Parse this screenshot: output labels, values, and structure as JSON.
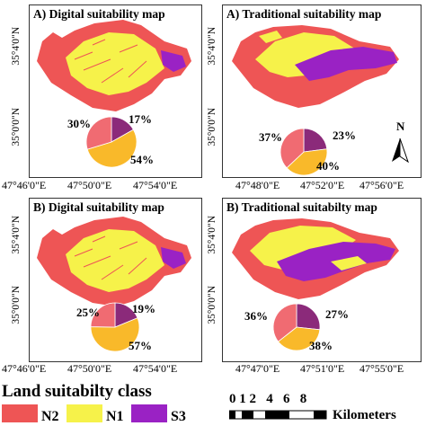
{
  "colors": {
    "N2": "#ee5555",
    "N1": "#f6f24a",
    "S3": "#9a22c4",
    "pie_N2": "#f06b72",
    "pie_N1": "#f9b92a",
    "pie_S3": "#8b2a7a"
  },
  "panels": [
    {
      "title": "A) Digital suitability map",
      "pct_N2": "30%",
      "pct_S3": "17%",
      "pct_N1": "54%",
      "lat_top": "35°4'0\"N",
      "lat_bottom": "35°0'0\"N",
      "lon": [
        "47°46'0\"E",
        "47°50'0\"E",
        "47°54'0\"E"
      ]
    },
    {
      "title": "A) Traditional suitability map",
      "pct_N2": "37%",
      "pct_S3": "23%",
      "pct_N1": "40%",
      "lat_top": "35°4'0\"N",
      "lat_bottom": "35°0'0\"N",
      "lon": [
        "47°48'0\"E",
        "47°52'0\"E",
        "47°56'0\"E"
      ]
    },
    {
      "title": "B) Digital suitability map",
      "pct_N2": "25%",
      "pct_S3": "19%",
      "pct_N1": "57%",
      "lat_top": "35°4'0\"N",
      "lat_bottom": "35°0'0\"N",
      "lon": [
        "47°46'0\"E",
        "47°50'0\"E",
        "47°54'0\"E"
      ]
    },
    {
      "title": "B) Traditional suitabilty map",
      "pct_N2": "36%",
      "pct_S3": "27%",
      "pct_N1": "38%",
      "lat_top": "35°4'0\"N",
      "lat_bottom": "35°0'0\"N",
      "lon": [
        "47°47'0\"E",
        "47°51'0\"E",
        "47°55'0\"E"
      ]
    }
  ],
  "north_label": "N",
  "legend": {
    "title": "Land suitabilty class",
    "items": [
      "N2",
      "N1",
      "S3"
    ]
  },
  "scale": {
    "numbers": "0 1 2   4   6   8",
    "unit": "Kilometers"
  }
}
